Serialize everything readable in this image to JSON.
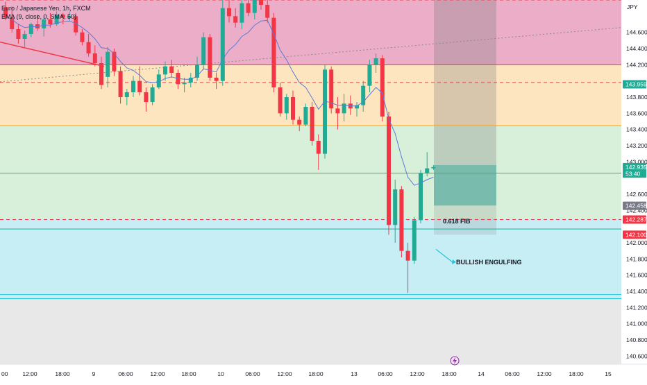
{
  "symbol": {
    "title": "Euro / Japanese Yen, 1h, FXCM",
    "indicator": "EMA (9, close, 0, SMA, 50)",
    "currency": "JPY"
  },
  "colors": {
    "up": "#22ab94",
    "down": "#f23645",
    "ema": "#5b7bd5",
    "zone_pink": "#ebadc8",
    "zone_orange": "#fde5c0",
    "zone_green": "#d8efd9",
    "zone_cyan": "#c8eef5",
    "zone_grey": "#e8e8e8"
  },
  "chart_data": {
    "type": "candlestick",
    "y_range": [
      140.5,
      145.0
    ],
    "y_ticks": [
      "144.600",
      "144.400",
      "144.200",
      "143.800",
      "143.600",
      "143.400",
      "143.200",
      "143.000",
      "142.600",
      "142.400",
      "142.000",
      "141.800",
      "141.600",
      "141.400",
      "141.200",
      "141.000",
      "140.800",
      "140.600"
    ],
    "x_ticks": [
      "00",
      "12:00",
      "18:00",
      "9",
      "06:00",
      "12:00",
      "18:00",
      "10",
      "06:00",
      "12:00",
      "18:00",
      "13",
      "06:00",
      "12:00",
      "18:00",
      "14",
      "06:00",
      "12:00",
      "18:00",
      "15"
    ],
    "price_labels": [
      {
        "text": "143.959",
        "value": 143.959,
        "color": "#22ab94"
      },
      {
        "text": "142.935",
        "value": 142.935,
        "color": "#22ab94"
      },
      {
        "text": "53:40",
        "value": 142.855,
        "color": "#22ab94"
      },
      {
        "text": "142.458",
        "value": 142.458,
        "color": "#787b86"
      },
      {
        "text": "142.287",
        "value": 142.287,
        "color": "#f23645"
      },
      {
        "text": "142.100",
        "value": 142.1,
        "color": "#f23645"
      }
    ],
    "zones": [
      {
        "name": "pink",
        "from": 144.2,
        "to": 145.0
      },
      {
        "name": "orange",
        "from": 143.45,
        "to": 144.2
      },
      {
        "name": "green",
        "from": 142.3,
        "to": 143.45
      },
      {
        "name": "cyan",
        "from": 141.3,
        "to": 142.3
      },
      {
        "name": "grey",
        "from": 140.5,
        "to": 141.3
      }
    ],
    "levels": [
      {
        "value": 145.0,
        "style": "dashed",
        "color": "#f23645"
      },
      {
        "value": 144.2,
        "style": "solid",
        "color": "#f23645"
      },
      {
        "value": 143.98,
        "style": "dashed",
        "color": "#f23645"
      },
      {
        "value": 143.45,
        "style": "solid",
        "color": "#f5a623"
      },
      {
        "value": 142.86,
        "style": "solid",
        "color": "#4caf50"
      },
      {
        "value": 142.287,
        "style": "dashed",
        "color": "#f23645"
      },
      {
        "value": 142.17,
        "style": "solid",
        "color": "#26a69a"
      },
      {
        "value": 141.36,
        "style": "solid",
        "color": "#26c6da"
      },
      {
        "value": 141.31,
        "style": "solid",
        "color": "#26c6da"
      }
    ],
    "candles": [
      [
        144.91,
        144.98,
        144.75,
        144.78
      ],
      [
        144.78,
        144.92,
        144.6,
        144.64
      ],
      [
        144.64,
        144.7,
        144.46,
        144.52
      ],
      [
        144.52,
        144.62,
        144.42,
        144.58
      ],
      [
        144.58,
        144.72,
        144.54,
        144.7
      ],
      [
        144.7,
        144.82,
        144.62,
        144.65
      ],
      [
        144.65,
        144.8,
        144.55,
        144.76
      ],
      [
        144.76,
        144.84,
        144.66,
        144.7
      ],
      [
        144.7,
        144.86,
        144.68,
        144.82
      ],
      [
        144.82,
        144.84,
        144.7,
        144.78
      ],
      [
        144.78,
        144.86,
        144.74,
        144.8
      ],
      [
        144.8,
        144.84,
        144.56,
        144.6
      ],
      [
        144.6,
        144.64,
        144.44,
        144.48
      ],
      [
        144.48,
        144.58,
        144.3,
        144.34
      ],
      [
        144.34,
        144.44,
        144.18,
        144.22
      ],
      [
        144.22,
        144.3,
        143.9,
        143.95
      ],
      [
        144.05,
        144.42,
        143.92,
        144.36
      ],
      [
        144.36,
        144.4,
        144.06,
        144.12
      ],
      [
        144.12,
        144.18,
        143.72,
        143.8
      ],
      [
        143.8,
        143.9,
        143.7,
        143.86
      ],
      [
        143.86,
        144.06,
        143.8,
        144.0
      ],
      [
        144.0,
        144.18,
        143.82,
        143.86
      ],
      [
        143.86,
        143.92,
        143.62,
        143.74
      ],
      [
        143.74,
        143.96,
        143.7,
        143.92
      ],
      [
        143.92,
        144.14,
        143.9,
        144.08
      ],
      [
        144.08,
        144.24,
        144.0,
        144.18
      ],
      [
        144.18,
        144.26,
        144.04,
        144.1
      ],
      [
        144.1,
        144.14,
        143.9,
        143.96
      ],
      [
        143.96,
        144.04,
        143.86,
        143.98
      ],
      [
        143.98,
        144.1,
        143.92,
        144.04
      ],
      [
        144.04,
        144.3,
        144.0,
        144.2
      ],
      [
        144.2,
        144.6,
        144.14,
        144.54
      ],
      [
        144.54,
        144.58,
        144.0,
        144.04
      ],
      [
        144.04,
        144.1,
        143.9,
        144.0
      ],
      [
        144.0,
        145.0,
        143.94,
        144.9
      ],
      [
        144.9,
        145.08,
        144.72,
        144.8
      ],
      [
        144.8,
        144.9,
        144.66,
        144.72
      ],
      [
        144.72,
        145.0,
        144.64,
        144.96
      ],
      [
        144.96,
        145.04,
        144.8,
        144.84
      ],
      [
        144.84,
        145.1,
        144.76,
        145.02
      ],
      [
        145.02,
        145.08,
        144.88,
        144.94
      ],
      [
        144.94,
        145.0,
        144.72,
        144.78
      ],
      [
        144.78,
        144.84,
        143.86,
        143.92
      ],
      [
        143.92,
        143.98,
        143.56,
        143.6
      ],
      [
        143.6,
        143.84,
        143.52,
        143.8
      ],
      [
        143.8,
        143.88,
        143.46,
        143.52
      ],
      [
        143.52,
        143.56,
        143.38,
        143.46
      ],
      [
        143.46,
        143.72,
        143.44,
        143.68
      ],
      [
        143.68,
        143.74,
        143.2,
        143.26
      ],
      [
        143.26,
        143.34,
        142.9,
        143.1
      ],
      [
        143.1,
        144.2,
        143.04,
        144.14
      ],
      [
        144.14,
        144.18,
        143.6,
        143.66
      ],
      [
        143.66,
        143.8,
        143.4,
        143.6
      ],
      [
        143.6,
        143.84,
        143.5,
        143.72
      ],
      [
        143.72,
        143.82,
        143.58,
        143.66
      ],
      [
        143.66,
        143.74,
        143.56,
        143.7
      ],
      [
        143.7,
        144.0,
        143.62,
        143.94
      ],
      [
        143.94,
        144.26,
        143.86,
        144.2
      ],
      [
        144.2,
        144.34,
        144.1,
        144.28
      ],
      [
        144.28,
        144.32,
        143.5,
        143.56
      ],
      [
        143.56,
        143.62,
        142.1,
        142.22
      ],
      [
        142.22,
        142.78,
        142.0,
        142.66
      ],
      [
        142.66,
        142.7,
        141.82,
        141.9
      ],
      [
        141.9,
        142.0,
        141.38,
        141.78
      ],
      [
        141.78,
        142.32,
        141.74,
        142.28
      ],
      [
        142.28,
        142.9,
        142.24,
        142.86
      ],
      [
        142.86,
        143.12,
        142.82,
        142.92
      ],
      [
        142.92,
        142.96,
        142.9,
        142.935
      ]
    ],
    "ema": [
      144.8,
      144.76,
      144.7,
      144.66,
      144.67,
      144.67,
      144.69,
      144.69,
      144.72,
      144.73,
      144.74,
      144.71,
      144.66,
      144.6,
      144.52,
      144.41,
      144.4,
      144.34,
      144.24,
      144.16,
      144.13,
      144.07,
      143.99,
      143.98,
      143.99,
      144.03,
      144.05,
      144.03,
      144.02,
      144.02,
      144.06,
      144.15,
      144.13,
      144.11,
      144.27,
      144.38,
      144.45,
      144.55,
      144.6,
      144.69,
      144.74,
      144.75,
      144.58,
      144.38,
      144.26,
      144.11,
      143.98,
      143.92,
      143.79,
      143.65,
      143.75,
      143.73,
      143.7,
      143.7,
      143.69,
      143.69,
      143.74,
      143.83,
      143.92,
      143.85,
      143.53,
      143.35,
      143.06,
      142.81,
      142.71,
      142.74,
      142.78,
      142.81
    ],
    "annotations": [
      {
        "text": "0.618 FIB",
        "value": 142.31
      },
      {
        "text": "BULLISH ENGULFING",
        "value": 141.76
      }
    ],
    "position": {
      "entry": 142.46,
      "target": 145.0,
      "stop": 142.1
    }
  }
}
